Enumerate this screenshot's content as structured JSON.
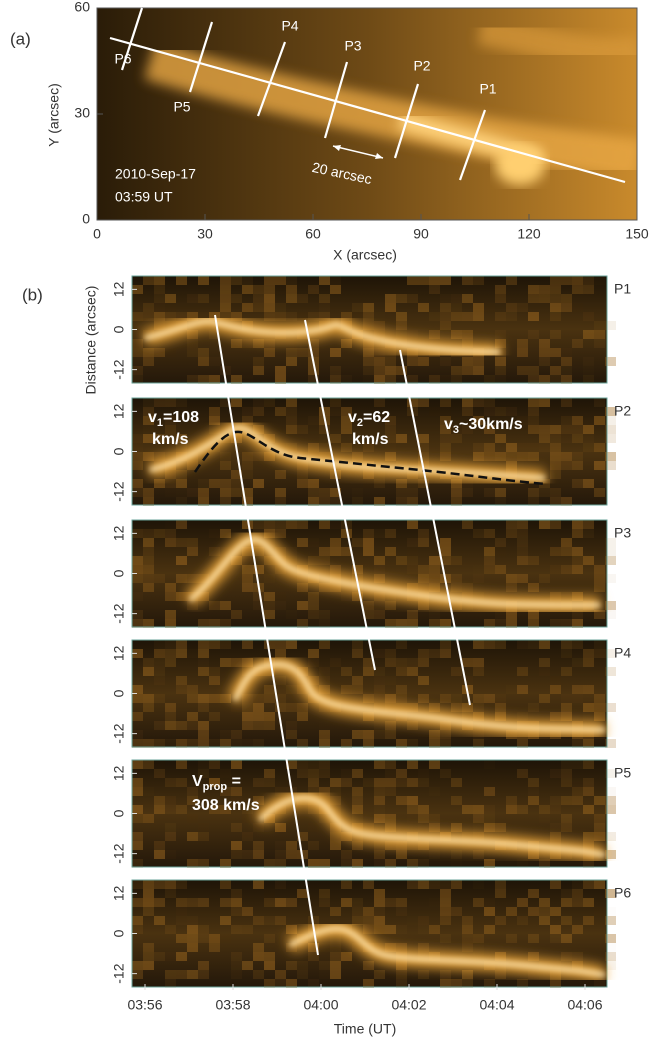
{
  "figure": {
    "panel_a": {
      "label": "(a)",
      "xlabel": "X (arcsec)",
      "ylabel": "Y (arcsec)",
      "xlim": [
        0,
        150
      ],
      "xticks": [
        0,
        30,
        60,
        90,
        120,
        150
      ],
      "ylim": [
        0,
        60
      ],
      "yticks": [
        0,
        30,
        60
      ],
      "date": "2010-Sep-17",
      "time": "03:59 UT",
      "scale_label": "20 arcsec",
      "slits": [
        "P6",
        "P5",
        "P4",
        "P3",
        "P2",
        "P1"
      ]
    },
    "panel_b": {
      "label": "(b)",
      "xlabel": "Time (UT)",
      "ylabel": "Distance (arcsec)",
      "time_ticks": [
        "03:56",
        "03:58",
        "04:00",
        "04:02",
        "04:04",
        "04:06"
      ],
      "ylim": [
        -16,
        16
      ],
      "yticks": [
        12,
        0,
        -12
      ],
      "panels": [
        "P1",
        "P2",
        "P3",
        "P4",
        "P5",
        "P6"
      ],
      "speeds": [
        {
          "symbol": "v",
          "sub": "1",
          "text": "=108",
          "unit": "km/s"
        },
        {
          "symbol": "v",
          "sub": "2",
          "text": "=62",
          "unit": "km/s"
        },
        {
          "symbol": "v",
          "sub": "3",
          "text": "~30km/s"
        }
      ],
      "prop": {
        "symbol": "V",
        "sub": "prop",
        "text": " =",
        "value": "308 km/s"
      }
    }
  }
}
